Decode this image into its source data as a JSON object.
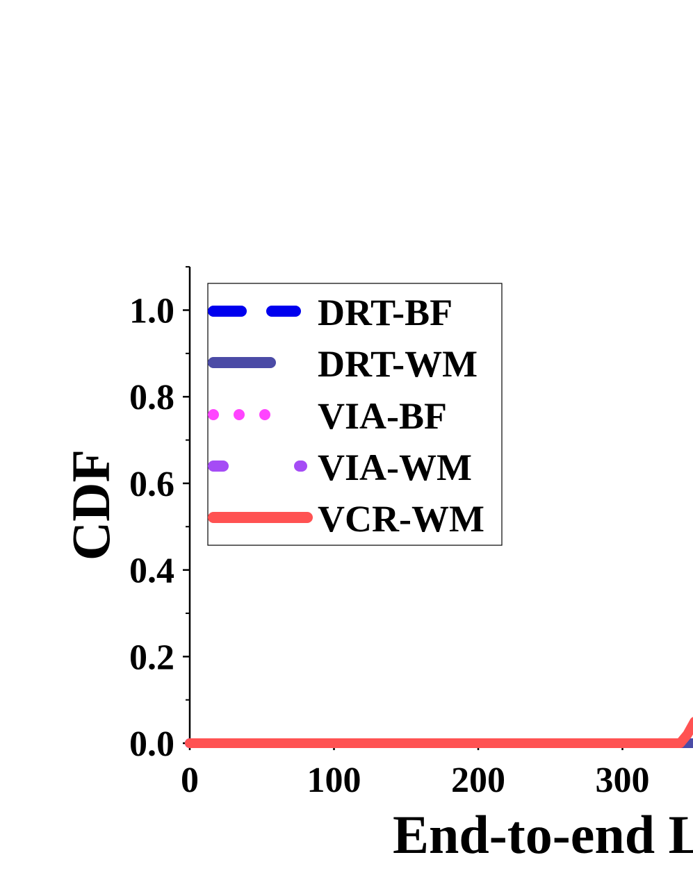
{
  "chart_data": {
    "type": "line",
    "xlabel": "End-to-end L",
    "ylabel": "CDF",
    "xlim": [
      0,
      350
    ],
    "ylim": [
      0,
      1.1
    ],
    "x_ticks": [
      0,
      100,
      200,
      300
    ],
    "y_ticks": [
      0.0,
      0.2,
      0.4,
      0.6,
      0.8,
      1.0
    ],
    "y_tick_labels": [
      "0.0",
      "0.2",
      "0.4",
      "0.6",
      "0.8",
      "1.0"
    ],
    "grid": false,
    "legend_position": "top-left",
    "series": [
      {
        "name": "DRT-BF",
        "color": "#0000ee",
        "style": "dashed",
        "x": [
          0,
          350
        ],
        "y": [
          0,
          0
        ]
      },
      {
        "name": "DRT-WM",
        "color": "#4b4ba6",
        "style": "solid",
        "x": [
          0,
          350
        ],
        "y": [
          0,
          0
        ]
      },
      {
        "name": "VIA-BF",
        "color": "#ff44ff",
        "style": "dotted",
        "x": [
          0,
          350
        ],
        "y": [
          0,
          0
        ]
      },
      {
        "name": "VIA-WM",
        "color": "#a54cf5",
        "style": "dash-gap",
        "x": [
          0,
          350
        ],
        "y": [
          0,
          0
        ]
      },
      {
        "name": "VCR-WM",
        "color": "#ff5252",
        "style": "solid",
        "x": [
          0,
          340,
          345,
          350
        ],
        "y": [
          0,
          0,
          0.02,
          0.05
        ]
      }
    ]
  }
}
